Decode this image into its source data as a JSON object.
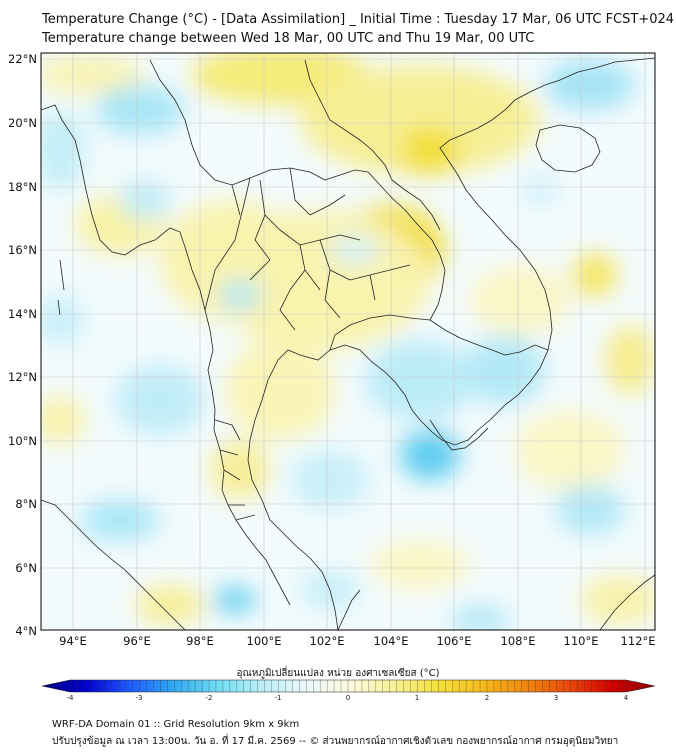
{
  "header": {
    "title_line1": "Temperature Change (°C) - [Data Assimilation] _ Initial Time : Tuesday 17 Mar, 06 UTC FCST+024",
    "title_line2": "Temperature change between Wed 18 Mar, 00 UTC and Thu 19 Mar, 00 UTC"
  },
  "map": {
    "y_tick_labels": [
      "22°N",
      "20°N",
      "18°N",
      "16°N",
      "14°N",
      "12°N",
      "10°N",
      "8°N",
      "6°N",
      "4°N"
    ],
    "x_tick_labels": [
      "94°E",
      "96°E",
      "98°E",
      "100°E",
      "102°E",
      "104°E",
      "106°E",
      "108°E",
      "110°E",
      "112°E"
    ]
  },
  "colorbar": {
    "label": "อุณหภูมิเปลี่ยนแปลง หน่วย องศาเซลเซียส (°C)",
    "tick_labels": [
      "-4",
      "-3",
      "-2",
      "-1",
      "0",
      "1",
      "2",
      "3",
      "4"
    ],
    "colors": [
      "#00007a",
      "#0000d0",
      "#1e5aff",
      "#2fa8f0",
      "#6fdcf5",
      "#b9eef7",
      "#e9f8fb",
      "#fdfbe0",
      "#f7f19a",
      "#f5e23e",
      "#f6bd1c",
      "#f08a10",
      "#ea4a0a",
      "#d40000",
      "#8a0000"
    ]
  },
  "footer": {
    "line1": "WRF-DA Domain 01 :: Grid Resolution 9km x 9km",
    "line2": "ปรับปรุงข้อมูล ณ เวลา 13:00น. วัน อ. ที่ 17 มี.ค. 2569 -- © ส่วนพยากรณ์อากาศเชิงตัวเลข กองพยากรณ์อากาศ กรมอุตุนิยมวิทยา"
  }
}
